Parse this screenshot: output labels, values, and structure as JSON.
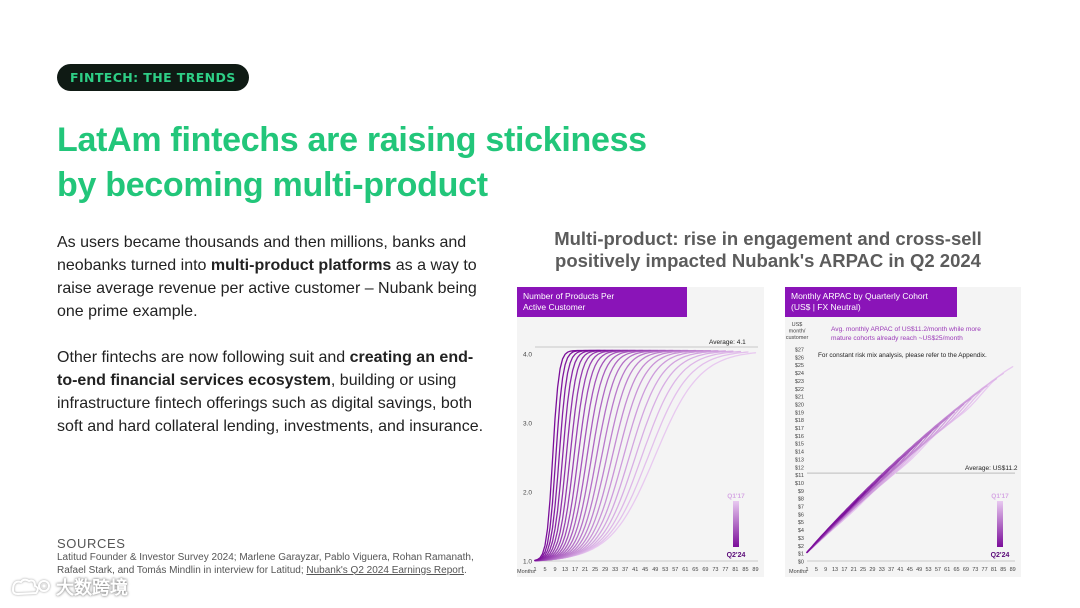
{
  "header": {
    "pill_label": "FINTECH: THE TRENDS",
    "title_line1": "LatAm fintechs are raising stickiness",
    "title_line2": "by becoming multi-product"
  },
  "body": {
    "p1_a": "As users became thousands and then millions, banks and neobanks turned into ",
    "p1_b": "multi-product platforms",
    "p1_c": " as a way to raise average revenue per active customer – Nubank being one prime example.",
    "p2_a": "Other fintechs are now following suit and ",
    "p2_b": "creating an end-to-end financial services ecosystem",
    "p2_c": ", building or using infrastructure fintech offerings such as digital savings, both soft and hard collateral lending, investments, and insurance."
  },
  "sources": {
    "label": "SOURCES",
    "text": "Latitud Founder & Investor Survey 2024; Marlene Garayzar, Pablo Viguera, Rohan Ramanath, Rafael Stark, and Tomás Mindlin in interview for Latitud; ",
    "link": "Nubank's Q2 2024 Earnings Report",
    "end": "."
  },
  "watermark": {
    "text": "大数跨境"
  },
  "figure": {
    "title_line1": "Multi-product: rise in engagement and cross-sell",
    "title_line2": "positively impacted Nubank's ARPAC in Q2 2024"
  },
  "colors": {
    "accent_green": "#22c67a",
    "pill_bg": "#0f1a14",
    "chart_header_purple": "#8a14b8",
    "cohort_dark": "#7b0e9a",
    "cohort_light": "#e8c9f0"
  },
  "chart_data": [
    {
      "type": "line",
      "title_line1": "Number of Products Per",
      "title_line2": "Active Customer",
      "xlabel": "Months",
      "x_ticks": [
        "1",
        "5",
        "9",
        "13",
        "17",
        "21",
        "25",
        "29",
        "33",
        "37",
        "41",
        "45",
        "49",
        "53",
        "57",
        "61",
        "65",
        "69",
        "73",
        "77",
        "81",
        "85",
        "89"
      ],
      "y_ticks": [
        "4.0",
        "3.0",
        "2.0",
        "1.0"
      ],
      "ylim": [
        1.0,
        4.1
      ],
      "xlim": [
        1,
        90
      ],
      "average_label": "Average: 4.1",
      "average_value": 4.1,
      "legend_top": "Q1'17",
      "legend_bottom": "Q2'24",
      "series_count": 22,
      "series_shape": "each quarterly cohort starts at about 1.0 product and rises toward about 4.0; older cohorts (lighter) span more months, newer cohorts (darker) ramp faster",
      "representative_series": [
        {
          "x": [
            1,
            9,
            21,
            33,
            45,
            57,
            69,
            81,
            89
          ],
          "y": [
            1.0,
            1.2,
            1.7,
            2.3,
            2.9,
            3.4,
            3.8,
            4.0,
            4.0
          ]
        },
        {
          "x": [
            1,
            5,
            9,
            13,
            17,
            21,
            25
          ],
          "y": [
            1.0,
            2.2,
            3.2,
            3.7,
            3.9,
            4.0,
            4.0
          ]
        }
      ]
    },
    {
      "type": "line",
      "title_line1": "Monthly ARPAC by Quarterly Cohort",
      "title_line2": "(US$ | FX Neutral)",
      "ylabel_lines": [
        "US$",
        "month/",
        "customer"
      ],
      "xlabel": "Months",
      "x_ticks": [
        "1",
        "5",
        "9",
        "13",
        "17",
        "21",
        "25",
        "29",
        "33",
        "37",
        "41",
        "45",
        "49",
        "53",
        "57",
        "61",
        "65",
        "69",
        "73",
        "77",
        "81",
        "85",
        "89"
      ],
      "y_ticks": [
        "$27",
        "$26",
        "$25",
        "$24",
        "$23",
        "$22",
        "$21",
        "$20",
        "$19",
        "$18",
        "$17",
        "$16",
        "$15",
        "$14",
        "$13",
        "$12",
        "$11",
        "$10",
        "$9",
        "$8",
        "$7",
        "$6",
        "$5",
        "$4",
        "$3",
        "$2",
        "$1",
        "$0"
      ],
      "ylim": [
        0,
        27
      ],
      "xlim": [
        1,
        90
      ],
      "annotation_lines": [
        "Avg. monthly ARPAC of US$11.2/month while more",
        "mature cohorts already reach ~US$25/month"
      ],
      "note": "For constant risk mix analysis, please refer to the Appendix.",
      "average_label": "Average: US$11.2",
      "average_value": 11.2,
      "legend_top": "Q1'17",
      "legend_bottom": "Q2'24",
      "series_count": 20,
      "series_shape": "ARPAC rises roughly linearly with cohort age, from about $1 to $25 for the most mature cohorts",
      "representative_series": [
        {
          "x": [
            1,
            13,
            25,
            37,
            49,
            61,
            73,
            85,
            89
          ],
          "y": [
            1,
            3,
            6,
            10,
            13,
            16,
            20,
            24,
            25
          ]
        }
      ]
    }
  ]
}
